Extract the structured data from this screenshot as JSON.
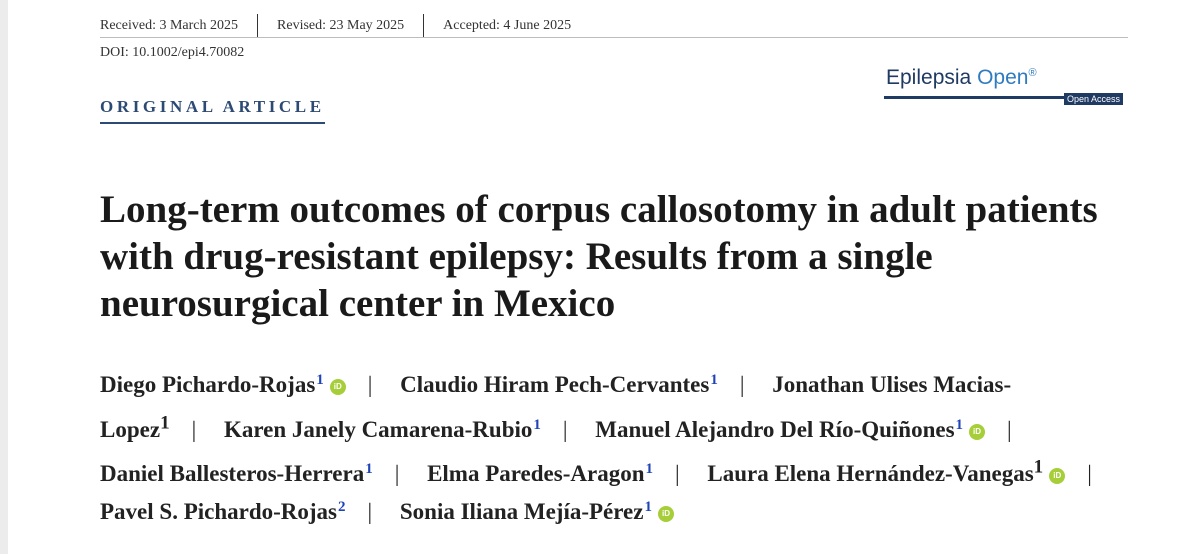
{
  "header": {
    "received": "Received: 3 March 2025",
    "revised": "Revised: 23 May 2025",
    "accepted": "Accepted: 4 June 2025",
    "doi": "DOI: 10.1002/epi4.70082"
  },
  "journal": {
    "name_part1": "Epilepsia",
    "name_part2": "Open",
    "registered_mark": "®",
    "badge": "Open Access"
  },
  "article": {
    "type": "ORIGINAL ARTICLE",
    "title": "Long-term outcomes of corpus callosotomy in adult patients with drug-resistant epilepsy: Results from a single neurosurgical center in Mexico"
  },
  "authors": [
    {
      "name": "Diego Pichardo-Rojas",
      "affil": "1"
    },
    {
      "name": "Claudio Hiram Pech-Cervantes",
      "affil": "1"
    },
    {
      "name": "Jonathan Ulises Macias-Lopez",
      "affil": "1"
    },
    {
      "name": "Karen Janely Camarena-Rubio",
      "affil": "1"
    },
    {
      "name": "Manuel Alejandro Del Río-Quiñones",
      "affil": "1"
    },
    {
      "name": "Daniel Ballesteros-Herrera",
      "affil": "1"
    },
    {
      "name": "Elma Paredes-Aragon",
      "affil": "1"
    },
    {
      "name": "Laura Elena Hernández-Vanegas",
      "affil": "1"
    },
    {
      "name": "Pavel S. Pichardo-Rojas",
      "affil": "2"
    },
    {
      "name": "Sonia Iliana Mejía-Pérez",
      "affil": "1"
    }
  ],
  "icons": {
    "orcid": "orcid-icon",
    "orcid_text": "iD",
    "orcid_color": "#a6ce39"
  },
  "colors": {
    "article_type": "#2c4a73",
    "journal_dark": "#1f3a63",
    "journal_light": "#2f7bbf",
    "affiliation": "#1e44b8"
  }
}
